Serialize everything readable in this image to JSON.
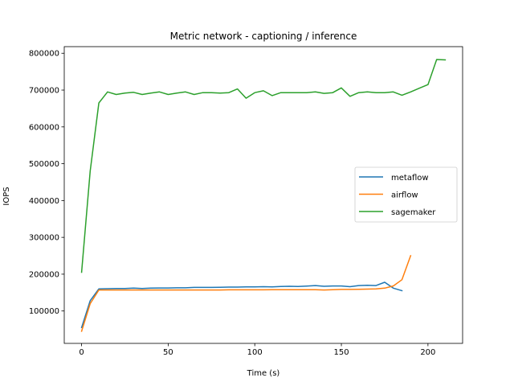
{
  "chart_data": {
    "type": "line",
    "title": "Metric network - captioning / inference",
    "xlabel": "Time (s)",
    "ylabel": "IOPS",
    "xlim": [
      -10,
      220
    ],
    "ylim": [
      12000,
      818000
    ],
    "xticks": [
      0,
      50,
      100,
      150,
      200
    ],
    "yticks": [
      100000,
      200000,
      300000,
      400000,
      500000,
      600000,
      700000,
      800000
    ],
    "xtick_labels": [
      "0",
      "50",
      "100",
      "150",
      "200"
    ],
    "ytick_labels": [
      "100000",
      "200000",
      "300000",
      "400000",
      "500000",
      "600000",
      "700000",
      "800000"
    ],
    "grid": false,
    "legend_position": "center-right",
    "series": [
      {
        "name": "metaflow",
        "color": "#1f77b4",
        "x": [
          0,
          5,
          10,
          15,
          20,
          25,
          30,
          35,
          40,
          45,
          50,
          55,
          60,
          65,
          70,
          75,
          80,
          85,
          90,
          95,
          100,
          105,
          110,
          115,
          120,
          125,
          130,
          135,
          140,
          145,
          150,
          155,
          160,
          165,
          170,
          175,
          180,
          185
        ],
        "y": [
          55000,
          128000,
          160000,
          160500,
          161000,
          161000,
          162000,
          161000,
          162000,
          162500,
          162500,
          163000,
          163000,
          164000,
          164000,
          164000,
          164500,
          165000,
          165000,
          165500,
          165500,
          166000,
          165500,
          166500,
          167000,
          166500,
          167500,
          169000,
          167000,
          168000,
          168000,
          166000,
          169000,
          170000,
          169000,
          178000,
          162000,
          155000
        ]
      },
      {
        "name": "airflow",
        "color": "#ff7f0e",
        "x": [
          0,
          5,
          10,
          15,
          20,
          25,
          30,
          35,
          40,
          45,
          50,
          55,
          60,
          65,
          70,
          75,
          80,
          85,
          90,
          95,
          100,
          105,
          110,
          115,
          120,
          125,
          130,
          135,
          140,
          145,
          150,
          155,
          160,
          165,
          170,
          175,
          180,
          185,
          190
        ],
        "y": [
          45000,
          120000,
          157000,
          157000,
          157000,
          157000,
          157000,
          157000,
          157000,
          157000,
          157000,
          157000,
          157000,
          157000,
          157000,
          157000,
          157000,
          157500,
          157500,
          157500,
          157500,
          157500,
          158000,
          158000,
          158000,
          158000,
          158000,
          158000,
          157000,
          158000,
          158500,
          158500,
          159000,
          159500,
          160000,
          162000,
          168000,
          185000,
          250000
        ]
      },
      {
        "name": "sagemaker",
        "color": "#2ca02c",
        "x": [
          0,
          5,
          10,
          15,
          20,
          25,
          30,
          35,
          40,
          45,
          50,
          55,
          60,
          65,
          70,
          75,
          80,
          85,
          90,
          95,
          100,
          105,
          110,
          115,
          120,
          125,
          130,
          135,
          140,
          145,
          150,
          155,
          160,
          165,
          170,
          175,
          180,
          185,
          190,
          195,
          200,
          205,
          210
        ],
        "y": [
          205000,
          480000,
          665000,
          695000,
          688000,
          692000,
          694000,
          688000,
          692000,
          695000,
          688000,
          692000,
          695000,
          688000,
          693000,
          693000,
          692000,
          693000,
          703000,
          678000,
          693000,
          698000,
          685000,
          693000,
          693000,
          693000,
          693000,
          695000,
          691000,
          693000,
          706000,
          683000,
          693000,
          695000,
          693000,
          693000,
          695000,
          686000,
          695000,
          705000,
          715000,
          783000,
          782000
        ]
      }
    ]
  }
}
